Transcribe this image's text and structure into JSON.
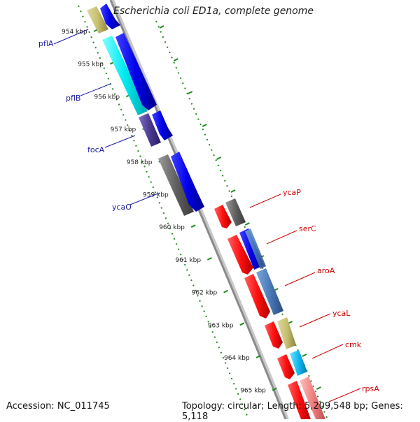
{
  "title": "Escherichia coli ED1a, complete genome",
  "footer": {
    "accession": "Accession: NC_011745",
    "topology": "Topology: circular; Length: 5,209,548 bp; Genes: 5,118"
  },
  "ticks": [
    "954 kbp",
    "955 kbp",
    "956 kbp",
    "957 kbp",
    "958 kbp",
    "959 kbp",
    "960 kbp",
    "961 kbp",
    "962 kbp",
    "963 kbp",
    "964 kbp",
    "965 kbp"
  ],
  "genes_left": [
    "pflA",
    "pflB",
    "focA",
    "ycaO"
  ],
  "genes_right": [
    "ycaP",
    "serC",
    "aroA",
    "ycaL",
    "cmk",
    "rpsA"
  ],
  "colors": {
    "forward_cds": "#1010e0",
    "reverse_cds": "#ee1111",
    "tick": "#228822",
    "backbone": "#888888",
    "left_label": "#1a1aa0",
    "right_label": "#cc0000"
  }
}
